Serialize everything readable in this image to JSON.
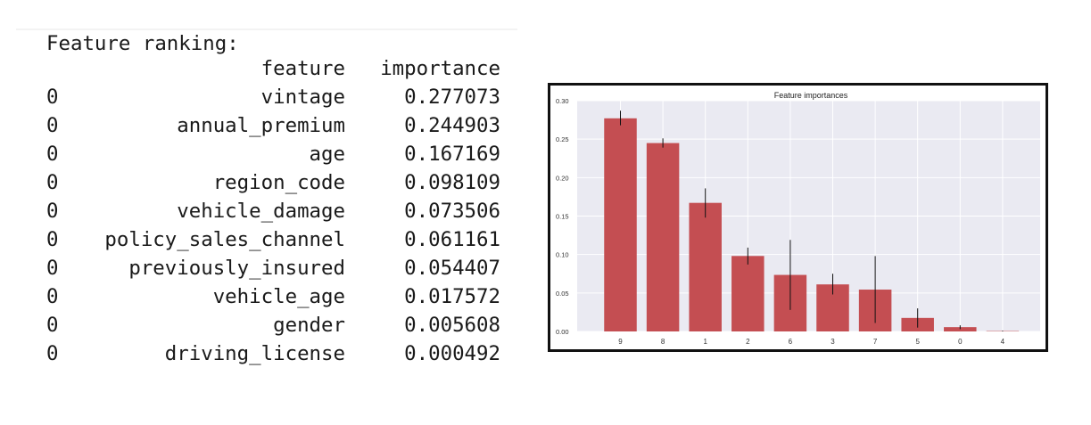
{
  "table": {
    "title": "Feature ranking:",
    "columns": [
      "feature",
      "importance"
    ],
    "rows": [
      {
        "index": "0",
        "feature": "vintage",
        "importance": "0.277073"
      },
      {
        "index": "0",
        "feature": "annual_premium",
        "importance": "0.244903"
      },
      {
        "index": "0",
        "feature": "age",
        "importance": "0.167169"
      },
      {
        "index": "0",
        "feature": "region_code",
        "importance": "0.098109"
      },
      {
        "index": "0",
        "feature": "vehicle_damage",
        "importance": "0.073506"
      },
      {
        "index": "0",
        "feature": "policy_sales_channel",
        "importance": "0.061161"
      },
      {
        "index": "0",
        "feature": "previously_insured",
        "importance": "0.054407"
      },
      {
        "index": "0",
        "feature": "vehicle_age",
        "importance": "0.017572"
      },
      {
        "index": "0",
        "feature": "gender",
        "importance": "0.005608"
      },
      {
        "index": "0",
        "feature": "driving_license",
        "importance": "0.000492"
      }
    ]
  },
  "chart_data": {
    "type": "bar",
    "title": "Feature importances",
    "categories": [
      "9",
      "8",
      "1",
      "2",
      "6",
      "3",
      "7",
      "5",
      "0",
      "4"
    ],
    "values": [
      0.277073,
      0.244903,
      0.167169,
      0.098109,
      0.073506,
      0.061161,
      0.054407,
      0.017572,
      0.005608,
      0.000492
    ],
    "error_low": [
      0.268,
      0.239,
      0.148,
      0.087,
      0.028,
      0.048,
      0.011,
      0.005,
      0.003,
      0.0
    ],
    "error_high": [
      0.287,
      0.251,
      0.186,
      0.109,
      0.119,
      0.075,
      0.098,
      0.03,
      0.008,
      0.001
    ],
    "ylim": [
      0,
      0.3
    ],
    "yticks": [
      "0.00",
      "0.05",
      "0.10",
      "0.15",
      "0.20",
      "0.25",
      "0.30"
    ],
    "grid": true,
    "colors": {
      "bar": "#c44e52",
      "background": "#eaeaf2",
      "grid": "#ffffff",
      "error": "#111111"
    }
  }
}
